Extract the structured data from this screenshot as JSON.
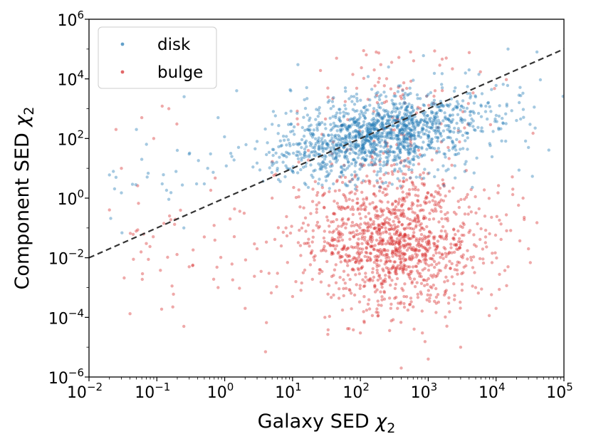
{
  "chart_data": {
    "type": "scatter",
    "title": "",
    "xlabel_text": "Galaxy SED ",
    "xlabel_symbol": "χ",
    "xlabel_sub": "2",
    "ylabel_text": "Component SED ",
    "ylabel_symbol": "χ",
    "ylabel_sub": "2",
    "x_scale": "log",
    "y_scale": "log",
    "xlim": [
      0.01,
      100000
    ],
    "ylim": [
      1e-06,
      1000000
    ],
    "x_ticks": [
      {
        "base": "10",
        "exp": "−2",
        "value": 0.01
      },
      {
        "base": "10",
        "exp": "−1",
        "value": 0.1
      },
      {
        "base": "10",
        "exp": "0",
        "value": 1
      },
      {
        "base": "10",
        "exp": "1",
        "value": 10
      },
      {
        "base": "10",
        "exp": "2",
        "value": 100
      },
      {
        "base": "10",
        "exp": "3",
        "value": 1000
      },
      {
        "base": "10",
        "exp": "4",
        "value": 10000
      },
      {
        "base": "10",
        "exp": "5",
        "value": 100000
      }
    ],
    "y_ticks": [
      {
        "base": "10",
        "exp": "−6",
        "value": 1e-06
      },
      {
        "base": "10",
        "exp": "−4",
        "value": 0.0001
      },
      {
        "base": "10",
        "exp": "−2",
        "value": 0.01
      },
      {
        "base": "10",
        "exp": "0",
        "value": 1
      },
      {
        "base": "10",
        "exp": "2",
        "value": 100
      },
      {
        "base": "10",
        "exp": "4",
        "value": 10000
      },
      {
        "base": "10",
        "exp": "6",
        "value": 1000000
      }
    ],
    "legend_position": "top-left",
    "grid": false,
    "reference_line": {
      "name": "y = x",
      "style": "dashed",
      "color": "#333333",
      "x": [
        0.01,
        100000
      ],
      "y": [
        0.01,
        100000
      ]
    },
    "series": [
      {
        "name": "disk",
        "color": "#1f77b4",
        "opacity": 0.4,
        "approx_points": 4000,
        "note": "dense band around y ≈ 10^1–10^4, centered near x ≈ 10^2–10^3",
        "points": [
          [
            0.02,
            6
          ],
          [
            0.025,
            5
          ],
          [
            0.03,
            1.5
          ],
          [
            0.05,
            200
          ],
          [
            0.06,
            20
          ],
          [
            0.12,
            3
          ],
          [
            0.2,
            40
          ],
          [
            0.25,
            0.1
          ],
          [
            0.3,
            30
          ],
          [
            0.5,
            3
          ],
          [
            0.8,
            500
          ],
          [
            1.5,
            4000
          ],
          [
            3,
            80
          ],
          [
            5,
            300
          ],
          [
            8,
            700
          ],
          [
            12,
            30000
          ],
          [
            15,
            2000
          ],
          [
            20,
            50
          ],
          [
            25,
            700
          ],
          [
            30,
            300
          ],
          [
            40,
            1200
          ],
          [
            50,
            400
          ],
          [
            60,
            5000
          ],
          [
            70,
            150
          ],
          [
            90,
            1800
          ],
          [
            110,
            600
          ],
          [
            130,
            12000
          ],
          [
            150,
            300
          ],
          [
            180,
            3500
          ],
          [
            220,
            900
          ],
          [
            260,
            25000
          ],
          [
            300,
            1500
          ],
          [
            350,
            250
          ],
          [
            420,
            4000
          ],
          [
            500,
            800
          ],
          [
            600,
            9000
          ],
          [
            700,
            2200
          ],
          [
            850,
            60000
          ],
          [
            1000,
            3000
          ],
          [
            1300,
            700
          ],
          [
            1600,
            15000
          ],
          [
            2000,
            1200
          ],
          [
            2500,
            5000
          ],
          [
            3000,
            400
          ],
          [
            4000,
            20000
          ],
          [
            5000,
            2500
          ],
          [
            7000,
            800
          ],
          [
            10000,
            6000
          ],
          [
            15000,
            100000
          ],
          [
            20000,
            400
          ],
          [
            30000,
            50
          ],
          [
            40000,
            80000
          ],
          [
            3,
            15
          ],
          [
            6,
            10
          ],
          [
            10,
            8
          ],
          [
            20,
            5
          ],
          [
            40,
            3
          ],
          [
            80,
            20
          ],
          [
            150,
            40
          ],
          [
            250,
            15
          ],
          [
            400,
            8
          ],
          [
            800,
            25
          ]
        ]
      },
      {
        "name": "bulge",
        "color": "#d62728",
        "opacity": 0.4,
        "approx_points": 3800,
        "note": "broad cloud around y ≈ 10^-4–10^0, centered near x ≈ 10^2–10^3",
        "points": [
          [
            0.02,
            0.4
          ],
          [
            0.025,
            200
          ],
          [
            0.03,
            10
          ],
          [
            0.06,
            500
          ],
          [
            0.07,
            0.03
          ],
          [
            0.09,
            100
          ],
          [
            0.15,
            1000
          ],
          [
            0.25,
            5e-05
          ],
          [
            0.3,
            0.005
          ],
          [
            0.5,
            0.05
          ],
          [
            0.8,
            0.001
          ],
          [
            1.2,
            0.2
          ],
          [
            2,
            0.0002
          ],
          [
            3,
            0.02
          ],
          [
            4,
            7e-06
          ],
          [
            5,
            1
          ],
          [
            6,
            0.003
          ],
          [
            8,
            0.1
          ],
          [
            10,
            0.0005
          ],
          [
            12,
            300
          ],
          [
            15,
            0.03
          ],
          [
            20,
            2
          ],
          [
            25,
            0.004
          ],
          [
            30,
            0.0001
          ],
          [
            40,
            0.3
          ],
          [
            50,
            0.01
          ],
          [
            60,
            5
          ],
          [
            70,
            0.0008
          ],
          [
            80,
            0.05
          ],
          [
            100,
            3e-05
          ],
          [
            120,
            0.5
          ],
          [
            140,
            0.002
          ],
          [
            160,
            20000
          ],
          [
            180,
            0.1
          ],
          [
            200,
            0.008
          ],
          [
            240,
            2
          ],
          [
            280,
            0.0002
          ],
          [
            320,
            0.3
          ],
          [
            360,
            0.015
          ],
          [
            400,
            2e-06
          ],
          [
            450,
            0.8
          ],
          [
            500,
            0.005
          ],
          [
            550,
            80000
          ],
          [
            600,
            0.05
          ],
          [
            700,
            0.0006
          ],
          [
            800,
            0.4
          ],
          [
            900,
            0.02
          ],
          [
            1000,
            4e-06
          ],
          [
            1200,
            0.2
          ],
          [
            1400,
            0.003
          ],
          [
            1700,
            3
          ],
          [
            2000,
            0.0003
          ],
          [
            2500,
            0.06
          ],
          [
            3000,
            1e-05
          ],
          [
            4000,
            0.5
          ],
          [
            5000,
            0.001
          ],
          [
            7000,
            0.05
          ],
          [
            10000,
            0.0002
          ],
          [
            15000,
            0.005
          ],
          [
            25000,
            1
          ],
          [
            30000,
            0.02
          ],
          [
            40000,
            0.15
          ],
          [
            35000,
            150
          ],
          [
            200,
            30000
          ],
          [
            300,
            0.4
          ],
          [
            450,
            0.06
          ],
          [
            600,
            0.01
          ],
          [
            350,
            0.002
          ],
          [
            250,
            0.15
          ],
          [
            700,
            0.25
          ]
        ]
      }
    ]
  }
}
